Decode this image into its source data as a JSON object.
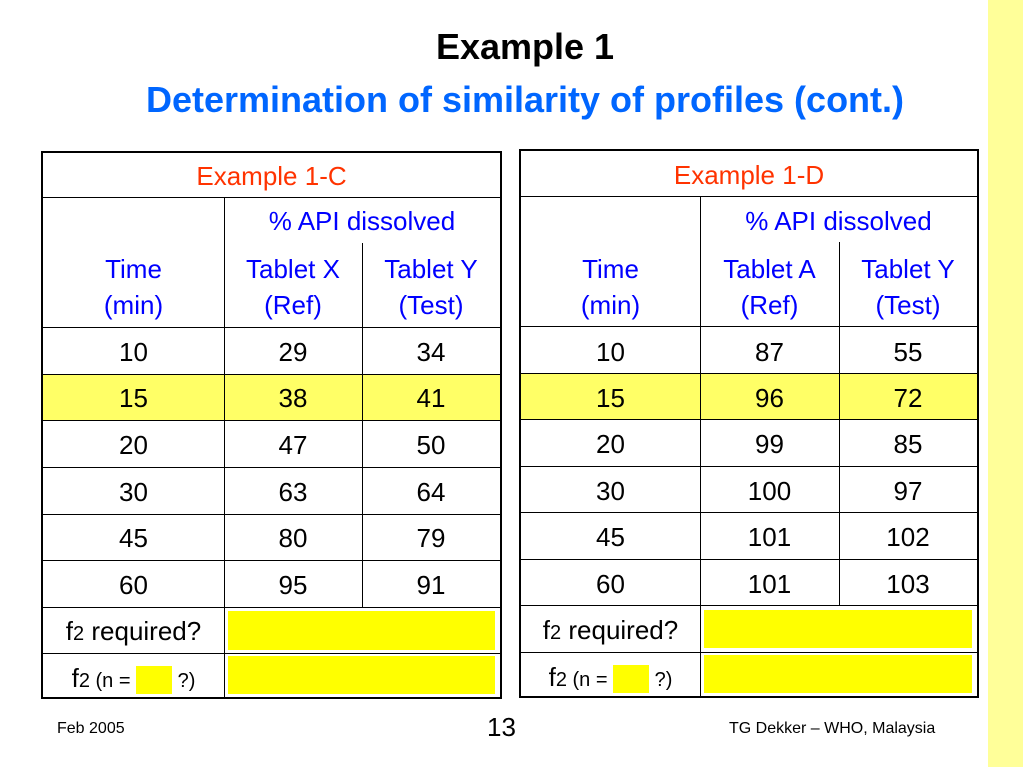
{
  "slide": {
    "title": "Example 1",
    "subtitle": "Determination of similarity of profiles (cont.)",
    "colors": {
      "title_blue": "#0066ff",
      "caption_red": "#ff3300",
      "header_blue": "#0000ff",
      "highlight": "#ffff66",
      "answer_box": "#ffff00",
      "side_bar": "#ffff99"
    }
  },
  "tables": [
    {
      "caption": "Example 1-C",
      "header_span": "% API dissolved",
      "time_header": [
        "Time",
        "(min)"
      ],
      "col1_header": [
        "Tablet X",
        "(Ref)"
      ],
      "col2_header": [
        "Tablet Y",
        "(Test)"
      ],
      "rows": [
        [
          "10",
          "29",
          "34"
        ],
        [
          "15",
          "38",
          "41"
        ],
        [
          "20",
          "47",
          "50"
        ],
        [
          "30",
          "63",
          "64"
        ],
        [
          "45",
          "80",
          "79"
        ],
        [
          "60",
          "95",
          "91"
        ]
      ],
      "f2_required": {
        "f": "f",
        "sub": "2",
        "text": " required?"
      },
      "f2_n": {
        "f": "f",
        "sub": "2",
        "paren_open": " (n = ",
        "paren_close": " ?)"
      }
    },
    {
      "caption": "Example 1-D",
      "header_span": "% API dissolved",
      "time_header": [
        "Time",
        "(min)"
      ],
      "col1_header": [
        "Tablet A",
        "(Ref)"
      ],
      "col2_header": [
        "Tablet Y",
        "(Test)"
      ],
      "rows": [
        [
          "10",
          "87",
          "55"
        ],
        [
          "15",
          "96",
          "72"
        ],
        [
          "20",
          "99",
          "85"
        ],
        [
          "30",
          "100",
          "97"
        ],
        [
          "45",
          "101",
          "102"
        ],
        [
          "60",
          "101",
          "103"
        ]
      ],
      "f2_required": {
        "f": "f",
        "sub": "2",
        "text": " required?"
      },
      "f2_n": {
        "f": "f",
        "sub": "2",
        "paren_open": " (n = ",
        "paren_close": " ?)"
      }
    }
  ],
  "footer": {
    "date": "Feb 2005",
    "page": "13",
    "author": "TG Dekker – WHO, Malaysia"
  }
}
